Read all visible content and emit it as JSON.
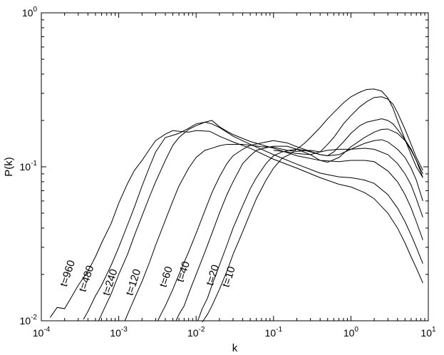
{
  "chart_data": {
    "type": "line",
    "title": "",
    "xlabel": "k",
    "ylabel": "P(k)",
    "x_scale": "log",
    "y_scale": "log",
    "xlim": [
      0.0001,
      10
    ],
    "ylim": [
      0.01,
      1
    ],
    "x_ticks": [
      {
        "base": "10",
        "exp": "-4",
        "value": 0.0001
      },
      {
        "base": "10",
        "exp": "-3",
        "value": 0.001
      },
      {
        "base": "10",
        "exp": "-2",
        "value": 0.01
      },
      {
        "base": "10",
        "exp": "-1",
        "value": 0.1
      },
      {
        "base": "10",
        "exp": "0",
        "value": 1
      },
      {
        "base": "10",
        "exp": "1",
        "value": 10
      }
    ],
    "y_ticks": [
      {
        "base": "10",
        "exp": "-2",
        "value": 0.01
      },
      {
        "base": "10",
        "exp": "-1",
        "value": 0.1
      },
      {
        "base": "10",
        "exp": "0",
        "value": 1
      }
    ],
    "grid": false,
    "line_color": "#000000",
    "series": [
      {
        "label": "t=960",
        "label_at": [
          0.00024,
          0.02
        ],
        "x": [
          0.00013,
          0.00016,
          0.0002,
          0.00025,
          0.0003,
          0.0004,
          0.0005,
          0.0006,
          0.0008,
          0.001,
          0.0013,
          0.0016,
          0.002,
          0.0025,
          0.003,
          0.004,
          0.005,
          0.006,
          0.008,
          0.01,
          0.015,
          0.02,
          0.03,
          0.05,
          0.1,
          0.2,
          0.4,
          0.7,
          1.0,
          1.5,
          2,
          3,
          4,
          5,
          6,
          7,
          8.5
        ],
        "y": [
          0.0105,
          0.0122,
          0.012,
          0.0145,
          0.017,
          0.021,
          0.026,
          0.032,
          0.043,
          0.058,
          0.078,
          0.095,
          0.11,
          0.13,
          0.148,
          0.163,
          0.172,
          0.17,
          0.168,
          0.172,
          0.17,
          0.158,
          0.145,
          0.132,
          0.112,
          0.098,
          0.085,
          0.077,
          0.074,
          0.068,
          0.062,
          0.05,
          0.04,
          0.032,
          0.026,
          0.022,
          0.0176
        ]
      },
      {
        "label": "t=480",
        "label_at": [
          0.00042,
          0.0185
        ],
        "x": [
          0.00035,
          0.0004,
          0.0005,
          0.0006,
          0.0008,
          0.001,
          0.0013,
          0.0016,
          0.002,
          0.0025,
          0.003,
          0.004,
          0.005,
          0.006,
          0.008,
          0.01,
          0.013,
          0.016,
          0.02,
          0.03,
          0.05,
          0.1,
          0.2,
          0.4,
          0.7,
          1.0,
          1.5,
          2,
          3,
          4,
          5,
          6,
          7,
          8.5
        ],
        "y": [
          0.0102,
          0.0115,
          0.0145,
          0.017,
          0.023,
          0.03,
          0.042,
          0.055,
          0.075,
          0.1,
          0.125,
          0.155,
          0.16,
          0.165,
          0.178,
          0.19,
          0.195,
          0.19,
          0.18,
          0.158,
          0.14,
          0.12,
          0.104,
          0.091,
          0.086,
          0.085,
          0.082,
          0.078,
          0.066,
          0.054,
          0.044,
          0.036,
          0.03,
          0.0235
        ]
      },
      {
        "label": "t=240",
        "label_at": [
          0.00085,
          0.0175
        ],
        "x": [
          0.00055,
          0.0006,
          0.0008,
          0.001,
          0.0013,
          0.0016,
          0.002,
          0.0025,
          0.003,
          0.004,
          0.005,
          0.006,
          0.008,
          0.01,
          0.013,
          0.016,
          0.02,
          0.025,
          0.03,
          0.05,
          0.1,
          0.2,
          0.4,
          0.7,
          1.0,
          1.5,
          2,
          3,
          4,
          5,
          6,
          7,
          8.5
        ],
        "y": [
          0.01,
          0.011,
          0.015,
          0.02,
          0.027,
          0.036,
          0.048,
          0.064,
          0.08,
          0.11,
          0.138,
          0.155,
          0.175,
          0.185,
          0.195,
          0.2,
          0.182,
          0.17,
          0.162,
          0.146,
          0.132,
          0.118,
          0.11,
          0.108,
          0.11,
          0.11,
          0.108,
          0.094,
          0.08,
          0.066,
          0.054,
          0.044,
          0.0335
        ]
      },
      {
        "label": "t=120",
        "label_at": [
          0.0017,
          0.0175
        ],
        "x": [
          0.0012,
          0.0013,
          0.0016,
          0.002,
          0.0025,
          0.003,
          0.004,
          0.005,
          0.006,
          0.008,
          0.01,
          0.013,
          0.016,
          0.02,
          0.025,
          0.03,
          0.04,
          0.05,
          0.07,
          0.1,
          0.15,
          0.2,
          0.3,
          0.4,
          0.5,
          0.7,
          1.0,
          1.5,
          2,
          3,
          4,
          5,
          6,
          7,
          8.5
        ],
        "y": [
          0.01,
          0.011,
          0.014,
          0.018,
          0.024,
          0.031,
          0.045,
          0.06,
          0.075,
          0.098,
          0.115,
          0.128,
          0.132,
          0.137,
          0.14,
          0.14,
          0.14,
          0.138,
          0.135,
          0.134,
          0.128,
          0.126,
          0.128,
          0.125,
          0.128,
          0.13,
          0.13,
          0.132,
          0.13,
          0.12,
          0.105,
          0.09,
          0.076,
          0.062,
          0.047
        ]
      },
      {
        "label": "t=60",
        "label_at": [
          0.0045,
          0.019
        ],
        "x": [
          0.0032,
          0.0035,
          0.004,
          0.005,
          0.006,
          0.008,
          0.01,
          0.013,
          0.016,
          0.02,
          0.025,
          0.03,
          0.04,
          0.05,
          0.07,
          0.1,
          0.15,
          0.2,
          0.3,
          0.4,
          0.5,
          0.7,
          1.0,
          1.5,
          2,
          2.5,
          3,
          4,
          5,
          6,
          7,
          8.5
        ],
        "y": [
          0.01,
          0.011,
          0.0125,
          0.016,
          0.02,
          0.028,
          0.037,
          0.052,
          0.068,
          0.086,
          0.105,
          0.118,
          0.13,
          0.138,
          0.143,
          0.148,
          0.143,
          0.135,
          0.126,
          0.12,
          0.118,
          0.12,
          0.13,
          0.142,
          0.148,
          0.15,
          0.145,
          0.13,
          0.115,
          0.098,
          0.082,
          0.06
        ]
      },
      {
        "label": "t=40",
        "label_at": [
          0.0075,
          0.0205
        ],
        "x": [
          0.0055,
          0.006,
          0.007,
          0.008,
          0.01,
          0.013,
          0.016,
          0.02,
          0.025,
          0.03,
          0.04,
          0.05,
          0.06,
          0.08,
          0.1,
          0.15,
          0.2,
          0.3,
          0.4,
          0.5,
          0.7,
          1.0,
          1.5,
          2,
          2.5,
          3,
          4,
          5,
          6,
          7,
          8.5
        ],
        "y": [
          0.01,
          0.011,
          0.0125,
          0.015,
          0.02,
          0.028,
          0.037,
          0.05,
          0.066,
          0.08,
          0.105,
          0.118,
          0.128,
          0.133,
          0.136,
          0.136,
          0.13,
          0.12,
          0.11,
          0.107,
          0.115,
          0.135,
          0.155,
          0.168,
          0.175,
          0.176,
          0.165,
          0.148,
          0.128,
          0.11,
          0.085
        ]
      },
      {
        "label": "t=20",
        "label_at": [
          0.018,
          0.0195
        ],
        "x": [
          0.0105,
          0.012,
          0.014,
          0.016,
          0.02,
          0.025,
          0.03,
          0.04,
          0.05,
          0.06,
          0.08,
          0.1,
          0.13,
          0.16,
          0.2,
          0.25,
          0.3,
          0.4,
          0.5,
          0.6,
          0.8,
          1.0,
          1.3,
          1.6,
          2,
          2.5,
          3,
          3.5,
          4,
          5,
          6,
          7,
          8.5
        ],
        "y": [
          0.01,
          0.012,
          0.014,
          0.017,
          0.023,
          0.031,
          0.04,
          0.056,
          0.072,
          0.085,
          0.105,
          0.118,
          0.125,
          0.128,
          0.13,
          0.128,
          0.125,
          0.12,
          0.118,
          0.125,
          0.145,
          0.165,
          0.185,
          0.195,
          0.2,
          0.205,
          0.2,
          0.19,
          0.175,
          0.15,
          0.13,
          0.11,
          0.09
        ]
      },
      {
        "label": "t=10",
        "label_at": [
          0.029,
          0.019
        ],
        "x": [
          0.012,
          0.014,
          0.016,
          0.02,
          0.025,
          0.03,
          0.04,
          0.05,
          0.06,
          0.08,
          0.1,
          0.13,
          0.16,
          0.2,
          0.25,
          0.3,
          0.4,
          0.5,
          0.6,
          0.8,
          1.0,
          1.3,
          1.6,
          2,
          2.5,
          3,
          3.5,
          4,
          5,
          6,
          7,
          8.5
        ],
        "y": [
          0.0098,
          0.011,
          0.0125,
          0.016,
          0.021,
          0.027,
          0.038,
          0.05,
          0.062,
          0.082,
          0.098,
          0.114,
          0.12,
          0.13,
          0.142,
          0.155,
          0.18,
          0.205,
          0.225,
          0.26,
          0.285,
          0.305,
          0.318,
          0.32,
          0.31,
          0.28,
          0.24,
          0.2,
          0.15,
          0.12,
          0.1,
          0.085
        ]
      },
      {
        "label": "",
        "label_at": null,
        "x": [
          0.1,
          0.15,
          0.2,
          0.3,
          0.4,
          0.5,
          0.6,
          0.8,
          1.0,
          1.3,
          1.6,
          2,
          2.5,
          3,
          3.5,
          4,
          5,
          6,
          7,
          8.5
        ],
        "y": [
          0.128,
          0.125,
          0.122,
          0.12,
          0.125,
          0.14,
          0.155,
          0.19,
          0.215,
          0.245,
          0.265,
          0.282,
          0.285,
          0.275,
          0.255,
          0.225,
          0.175,
          0.14,
          0.115,
          0.095
        ]
      }
    ]
  }
}
